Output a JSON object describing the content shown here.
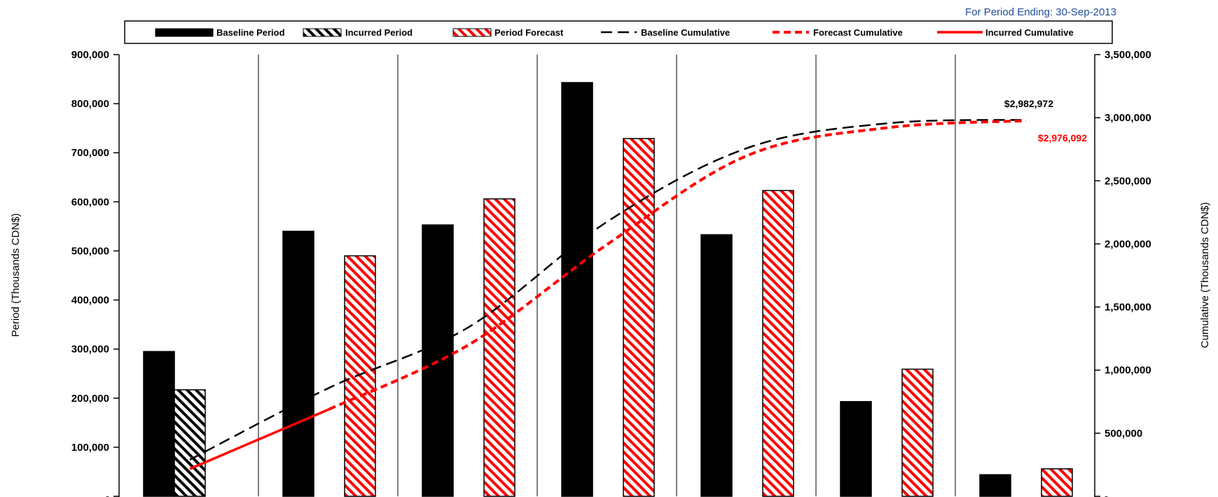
{
  "header": {
    "period_ending": "For Period Ending: 30-Sep-2013"
  },
  "colors": {
    "baseline": "#000000",
    "forecast": "#FF0000",
    "incurred": "#FF0000",
    "period_text": "#1F4E9A"
  },
  "legend": [
    {
      "key": "baseline_period",
      "label": "Baseline Period"
    },
    {
      "key": "incurred_period",
      "label": "Incurred Period"
    },
    {
      "key": "period_forecast",
      "label": "Period Forecast"
    },
    {
      "key": "baseline_cumulative",
      "label": "Baseline Cumulative"
    },
    {
      "key": "forecast_cumulative",
      "label": "Forecast Cumulative"
    },
    {
      "key": "incurred_cumulative",
      "label": "Incurred Cumulative"
    }
  ],
  "chart_data": {
    "type": "bar",
    "legend_position": "top",
    "grid": "vertical category separators",
    "categories": [
      "",
      "",
      "",
      "",
      "",
      "",
      ""
    ],
    "y_left": {
      "label": "Period (Thousands CDN$)",
      "ylim": [
        0,
        900000
      ],
      "ticks": [
        "-",
        "100,000",
        "200,000",
        "300,000",
        "400,000",
        "500,000",
        "600,000",
        "700,000",
        "800,000",
        "900,000"
      ]
    },
    "y_right": {
      "label": "Cumulative (Thousands CDN$)",
      "ylim": [
        0,
        3500000
      ],
      "ticks": [
        "-",
        "500,000",
        "1,000,000",
        "1,500,000",
        "2,000,000",
        "2,500,000",
        "3,000,000",
        "3,500,000"
      ]
    },
    "bar_series": [
      {
        "key": "baseline_period",
        "values": [
          295000,
          540000,
          553000,
          843000,
          533000,
          193000,
          44000
        ]
      },
      {
        "key": "incurred_period",
        "values": [
          217000,
          null,
          null,
          null,
          null,
          null,
          null
        ]
      },
      {
        "key": "period_forecast",
        "values": [
          null,
          490000,
          606000,
          729000,
          623000,
          259000,
          56000
        ]
      }
    ],
    "line_series": [
      {
        "key": "baseline_cumulative",
        "points": [
          [
            0,
            290000
          ],
          [
            1,
            860000
          ],
          [
            2,
            1340000
          ],
          [
            3,
            2180000
          ],
          [
            4,
            2760000
          ],
          [
            5,
            2955000
          ],
          [
            6,
            2982972
          ]
        ]
      },
      {
        "key": "forecast_cumulative",
        "points": [
          [
            1,
            690000
          ],
          [
            2,
            1200000
          ],
          [
            3,
            2000000
          ],
          [
            4,
            2700000
          ],
          [
            5,
            2920000
          ],
          [
            6,
            2976092
          ]
        ]
      },
      {
        "key": "incurred_cumulative",
        "points": [
          [
            0,
            217000
          ],
          [
            1,
            690000
          ]
        ]
      }
    ],
    "annotations": [
      {
        "series": "baseline_cumulative",
        "text": "$2,982,972"
      },
      {
        "series": "forecast_cumulative",
        "text": "$2,976,092"
      }
    ]
  }
}
